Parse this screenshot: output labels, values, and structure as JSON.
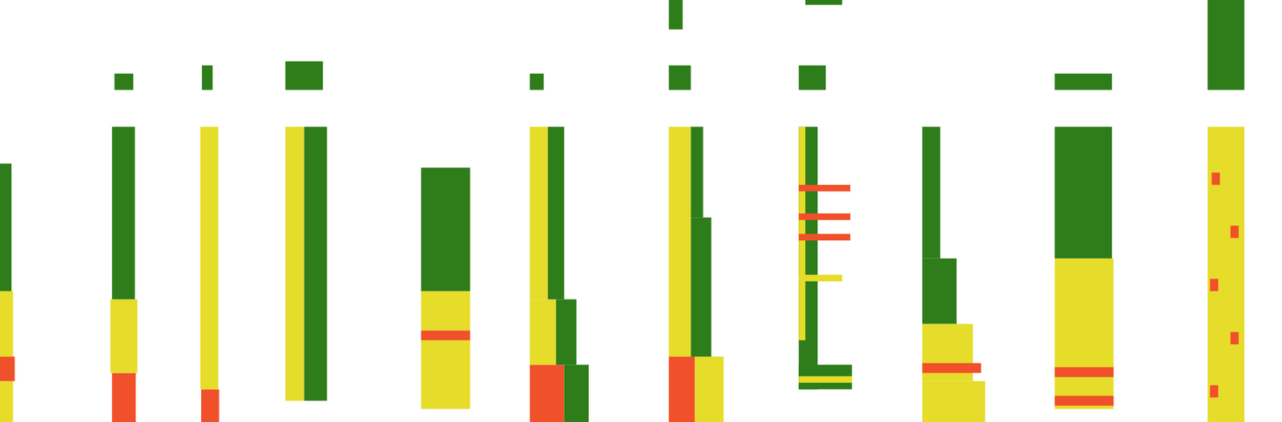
{
  "chart_data": {
    "type": "spectrogram",
    "xlim": [
      0,
      1568
    ],
    "ylim": [
      0,
      516
    ],
    "tick_labels": false,
    "levels": [
      1,
      2,
      3
    ],
    "colors": [
      "#2e7d1a",
      "#e6dc2a",
      "#f0502a"
    ],
    "cells": [
      {
        "t0": 0,
        "t1": 16,
        "f0": 0,
        "f1": 50,
        "level": 2
      },
      {
        "t0": 0,
        "t1": 18,
        "f0": 50,
        "f1": 80,
        "level": 3
      },
      {
        "t0": 0,
        "t1": 16,
        "f0": 80,
        "f1": 160,
        "level": 2
      },
      {
        "t0": 0,
        "t1": 14,
        "f0": 160,
        "f1": 316,
        "level": 1
      },
      {
        "t0": 137,
        "t1": 166,
        "f0": 0,
        "f1": 60,
        "level": 3
      },
      {
        "t0": 135,
        "t1": 168,
        "f0": 60,
        "f1": 150,
        "level": 2
      },
      {
        "t0": 137,
        "t1": 165,
        "f0": 150,
        "f1": 361,
        "level": 1
      },
      {
        "t0": 140,
        "t1": 163,
        "f0": 406,
        "f1": 426,
        "level": 1
      },
      {
        "t0": 246,
        "t1": 268,
        "f0": 0,
        "f1": 40,
        "level": 3
      },
      {
        "t0": 245,
        "t1": 267,
        "f0": 40,
        "f1": 361,
        "level": 2
      },
      {
        "t0": 247,
        "t1": 260,
        "f0": 406,
        "f1": 436,
        "level": 1
      },
      {
        "t0": 349,
        "t1": 372,
        "f0": 26,
        "f1": 361,
        "level": 2
      },
      {
        "t0": 372,
        "t1": 400,
        "f0": 26,
        "f1": 361,
        "level": 1
      },
      {
        "t0": 349,
        "t1": 395,
        "f0": 406,
        "f1": 441,
        "level": 1
      },
      {
        "t0": 515,
        "t1": 575,
        "f0": 16,
        "f1": 100,
        "level": 2
      },
      {
        "t0": 515,
        "t1": 575,
        "f0": 100,
        "f1": 112,
        "level": 3
      },
      {
        "t0": 515,
        "t1": 575,
        "f0": 112,
        "f1": 160,
        "level": 2
      },
      {
        "t0": 515,
        "t1": 575,
        "f0": 160,
        "f1": 311,
        "level": 1
      },
      {
        "t0": 648,
        "t1": 690,
        "f0": 0,
        "f1": 70,
        "level": 3
      },
      {
        "t0": 690,
        "t1": 720,
        "f0": 0,
        "f1": 70,
        "level": 1
      },
      {
        "t0": 648,
        "t1": 680,
        "f0": 70,
        "f1": 150,
        "level": 2
      },
      {
        "t0": 680,
        "t1": 705,
        "f0": 70,
        "f1": 150,
        "level": 1
      },
      {
        "t0": 648,
        "t1": 670,
        "f0": 150,
        "f1": 361,
        "level": 2
      },
      {
        "t0": 670,
        "t1": 690,
        "f0": 150,
        "f1": 361,
        "level": 1
      },
      {
        "t0": 648,
        "t1": 665,
        "f0": 406,
        "f1": 426,
        "level": 1
      },
      {
        "t0": 818,
        "t1": 850,
        "f0": 0,
        "f1": 80,
        "level": 3
      },
      {
        "t0": 850,
        "t1": 885,
        "f0": 0,
        "f1": 80,
        "level": 2
      },
      {
        "t0": 818,
        "t1": 845,
        "f0": 80,
        "f1": 361,
        "level": 2
      },
      {
        "t0": 845,
        "t1": 870,
        "f0": 80,
        "f1": 250,
        "level": 1
      },
      {
        "t0": 845,
        "t1": 860,
        "f0": 250,
        "f1": 361,
        "level": 1
      },
      {
        "t0": 818,
        "t1": 845,
        "f0": 406,
        "f1": 436,
        "level": 1
      },
      {
        "t0": 818,
        "t1": 835,
        "f0": 480,
        "f1": 516,
        "level": 1
      },
      {
        "t0": 977,
        "t1": 1000,
        "f0": 40,
        "f1": 361,
        "level": 1
      },
      {
        "t0": 977,
        "t1": 985,
        "f0": 100,
        "f1": 361,
        "level": 2
      },
      {
        "t0": 977,
        "t1": 1040,
        "f0": 282,
        "f1": 290,
        "level": 3
      },
      {
        "t0": 977,
        "t1": 1040,
        "f0": 247,
        "f1": 255,
        "level": 3
      },
      {
        "t0": 977,
        "t1": 1040,
        "f0": 222,
        "f1": 230,
        "level": 3
      },
      {
        "t0": 977,
        "t1": 1030,
        "f0": 172,
        "f1": 180,
        "level": 2
      },
      {
        "t0": 977,
        "t1": 1042,
        "f0": 40,
        "f1": 70,
        "level": 1
      },
      {
        "t0": 977,
        "t1": 1042,
        "f0": 48,
        "f1": 56,
        "level": 2
      },
      {
        "t0": 977,
        "t1": 1010,
        "f0": 406,
        "f1": 436,
        "level": 1
      },
      {
        "t0": 985,
        "t1": 1030,
        "f0": 510,
        "f1": 516,
        "level": 1
      },
      {
        "t0": 1128,
        "t1": 1205,
        "f0": 0,
        "f1": 50,
        "level": 2
      },
      {
        "t0": 1128,
        "t1": 1190,
        "f0": 50,
        "f1": 120,
        "level": 2
      },
      {
        "t0": 1128,
        "t1": 1200,
        "f0": 60,
        "f1": 72,
        "level": 3
      },
      {
        "t0": 1128,
        "t1": 1170,
        "f0": 120,
        "f1": 200,
        "level": 1
      },
      {
        "t0": 1128,
        "t1": 1150,
        "f0": 200,
        "f1": 361,
        "level": 1
      },
      {
        "t0": 1290,
        "t1": 1362,
        "f0": 16,
        "f1": 200,
        "level": 2
      },
      {
        "t0": 1290,
        "t1": 1362,
        "f0": 20,
        "f1": 32,
        "level": 3
      },
      {
        "t0": 1290,
        "t1": 1362,
        "f0": 55,
        "f1": 67,
        "level": 3
      },
      {
        "t0": 1290,
        "t1": 1360,
        "f0": 200,
        "f1": 361,
        "level": 1
      },
      {
        "t0": 1290,
        "t1": 1360,
        "f0": 406,
        "f1": 426,
        "level": 1
      },
      {
        "t0": 1477,
        "t1": 1522,
        "f0": 0,
        "f1": 361,
        "level": 2
      },
      {
        "t0": 1480,
        "t1": 1490,
        "f0": 30,
        "f1": 45,
        "level": 3
      },
      {
        "t0": 1505,
        "t1": 1515,
        "f0": 95,
        "f1": 110,
        "level": 3
      },
      {
        "t0": 1480,
        "t1": 1490,
        "f0": 160,
        "f1": 175,
        "level": 3
      },
      {
        "t0": 1505,
        "t1": 1515,
        "f0": 225,
        "f1": 240,
        "level": 3
      },
      {
        "t0": 1482,
        "t1": 1492,
        "f0": 290,
        "f1": 305,
        "level": 3
      },
      {
        "t0": 1477,
        "t1": 1522,
        "f0": 406,
        "f1": 516,
        "level": 1
      }
    ]
  }
}
